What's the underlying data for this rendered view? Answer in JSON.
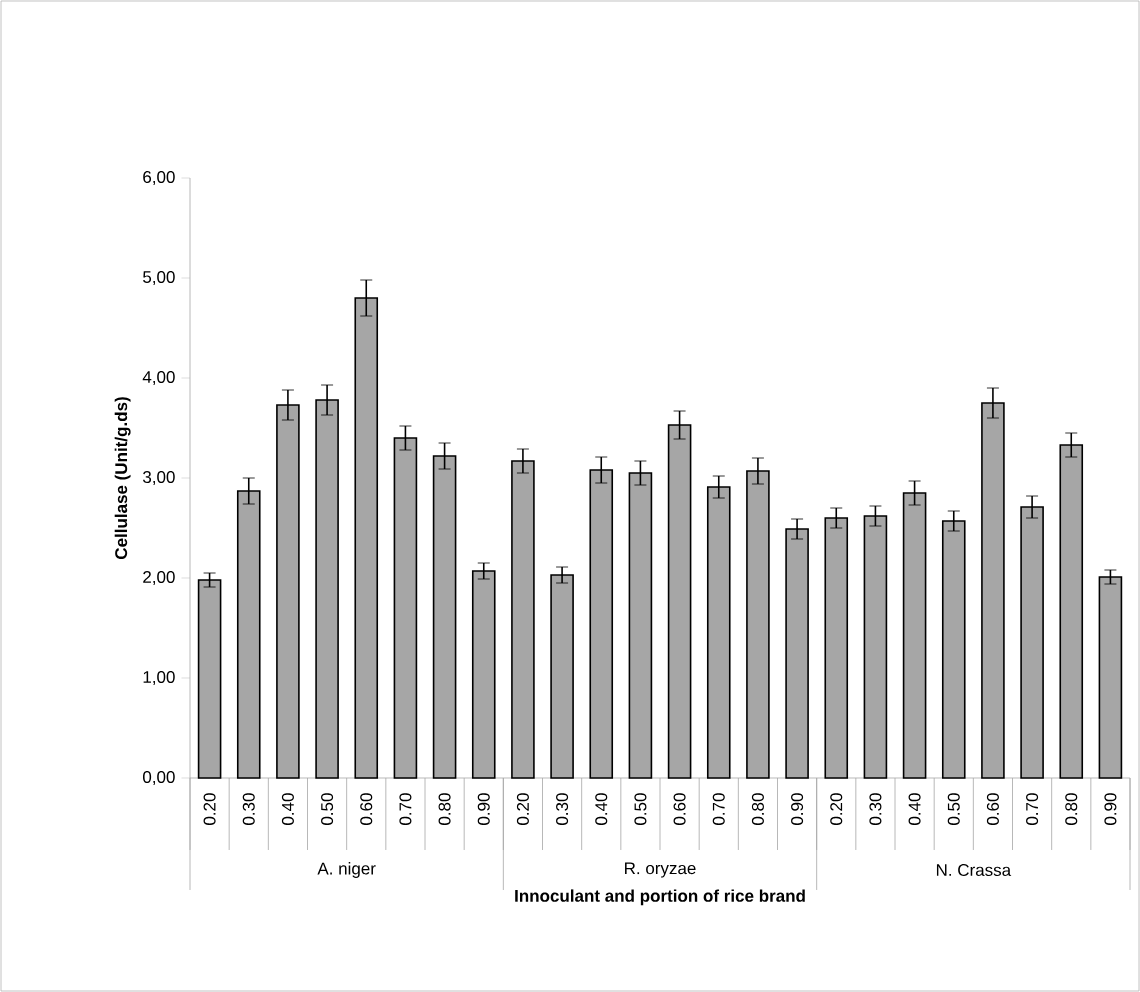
{
  "chart_data": {
    "type": "bar",
    "xlabel": "Innoculant and  portion of rice brand",
    "ylabel": "Cellulase (Unit/g.ds)",
    "categories": [
      "0.20",
      "0.30",
      "0.40",
      "0.50",
      "0.60",
      "0.70",
      "0.80",
      "0.90",
      "0.20",
      "0.30",
      "0.40",
      "0.50",
      "0.60",
      "0.70",
      "0.80",
      "0.90",
      "0.20",
      "0.30",
      "0.40",
      "0.50",
      "0.60",
      "0.70",
      "0.80",
      "0.90"
    ],
    "values": [
      1.98,
      2.87,
      3.73,
      3.78,
      4.8,
      3.4,
      3.22,
      2.07,
      3.17,
      2.03,
      3.08,
      3.05,
      3.53,
      2.91,
      3.07,
      2.49,
      2.6,
      2.62,
      2.85,
      2.57,
      3.75,
      2.71,
      3.33,
      2.01
    ],
    "errors": [
      0.07,
      0.13,
      0.15,
      0.15,
      0.18,
      0.12,
      0.13,
      0.08,
      0.12,
      0.08,
      0.13,
      0.12,
      0.14,
      0.11,
      0.13,
      0.1,
      0.1,
      0.1,
      0.12,
      0.1,
      0.15,
      0.11,
      0.12,
      0.07
    ],
    "color": "#a6a6a6",
    "ylim": [
      0,
      6
    ],
    "yticks": [
      {
        "value": 0,
        "label": "0,00"
      },
      {
        "value": 1,
        "label": "1,00"
      },
      {
        "value": 2,
        "label": "2,00"
      },
      {
        "value": 3,
        "label": "3,00"
      },
      {
        "value": 4,
        "label": "4,00"
      },
      {
        "value": 5,
        "label": "5,00"
      },
      {
        "value": 6,
        "label": "6,00"
      }
    ],
    "annotations": [
      "A. niger",
      "R. oryzae",
      "N. Crassa"
    ]
  }
}
